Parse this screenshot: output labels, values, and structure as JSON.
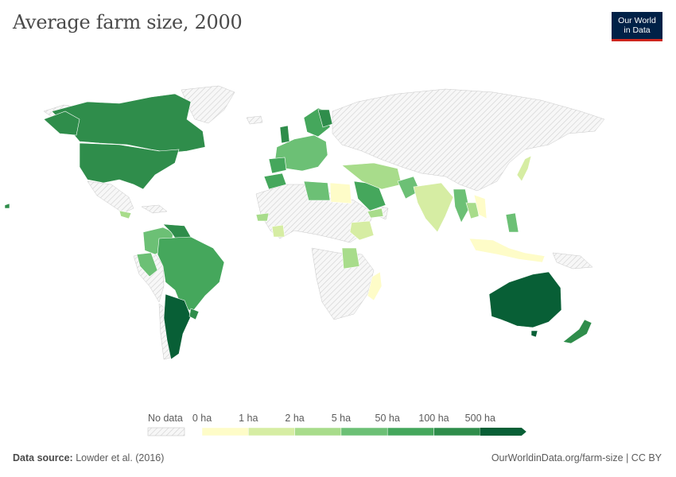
{
  "header": {
    "title": "Average farm size, 2000",
    "logo_line1": "Our World",
    "logo_line2": "in Data"
  },
  "legend": {
    "no_data_label": "No data",
    "bins": [
      {
        "label": "0 ha",
        "color": "#fefcc8"
      },
      {
        "label": "1 ha",
        "color": "#d6eda3"
      },
      {
        "label": "2 ha",
        "color": "#a8dc8b"
      },
      {
        "label": "5 ha",
        "color": "#6cc075"
      },
      {
        "label": "50 ha",
        "color": "#45a75c"
      },
      {
        "label": "100 ha",
        "color": "#2f8d4b"
      },
      {
        "label": "500 ha",
        "color": "#085f36"
      }
    ]
  },
  "footer": {
    "source_label": "Data source:",
    "source_value": "Lowder et al. (2016)",
    "url": "OurWorldinData.org/farm-size | CC BY"
  }
}
